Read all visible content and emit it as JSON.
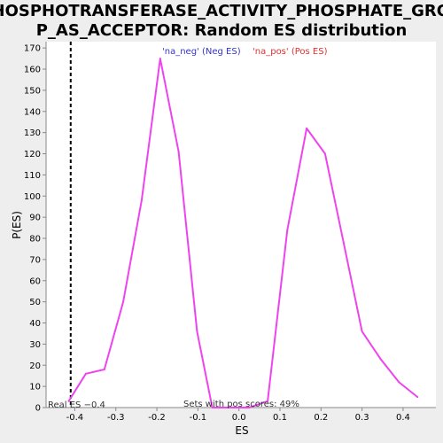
{
  "chart_data": {
    "type": "line",
    "title_lines": [
      "PHOSPHOTRANSFERASE_ACTIVITY_PHOSPHATE_GROU",
      "P_AS_ACCEPTOR: Random ES distribution"
    ],
    "xlabel": "ES",
    "ylabel": "P(ES)",
    "xlim": [
      -0.47,
      0.48
    ],
    "ylim": [
      0,
      173
    ],
    "x_ticks": [
      -0.4,
      -0.3,
      -0.2,
      -0.1,
      0.0,
      0.1,
      0.2,
      0.3,
      0.4
    ],
    "x_tick_labels": [
      "-0.4",
      "-0.3",
      "-0.2",
      "-0.1",
      "0.0",
      "0.1",
      "0.2",
      "0.3",
      "0.4"
    ],
    "y_ticks": [
      0,
      10,
      20,
      30,
      40,
      50,
      60,
      70,
      80,
      90,
      100,
      110,
      120,
      130,
      140,
      150,
      160,
      170
    ],
    "y_tick_labels": [
      "0",
      "10",
      "20",
      "30",
      "40",
      "50",
      "60",
      "70",
      "80",
      "90",
      "100",
      "110",
      "120",
      "130",
      "140",
      "150",
      "160",
      "170"
    ],
    "grid": false,
    "legend": [
      {
        "label": "'na_neg' (Neg ES)",
        "color": "#3333cc"
      },
      {
        "label": "'na_pos' (Pos ES)",
        "color": "#e03030"
      }
    ],
    "series": [
      {
        "color": "#ee44ee",
        "x": [
          -0.415,
          -0.373,
          -0.328,
          -0.282,
          -0.237,
          -0.192,
          -0.147,
          -0.102,
          -0.065,
          -0.02,
          0.025,
          0.07,
          0.118,
          0.165,
          0.21,
          0.255,
          0.3,
          0.345,
          0.39,
          0.435
        ],
        "y": [
          3,
          16,
          18,
          50,
          98,
          165,
          121,
          36,
          0,
          0,
          0,
          3,
          84,
          132,
          120,
          78,
          36,
          23,
          12,
          5
        ]
      }
    ],
    "marker_line": {
      "x": -0.41,
      "style": "dashed",
      "color": "#000000"
    },
    "annotations": {
      "real_es": "Real ES −0.4",
      "pos_scores": "Sets with pos scores: 49%"
    }
  }
}
